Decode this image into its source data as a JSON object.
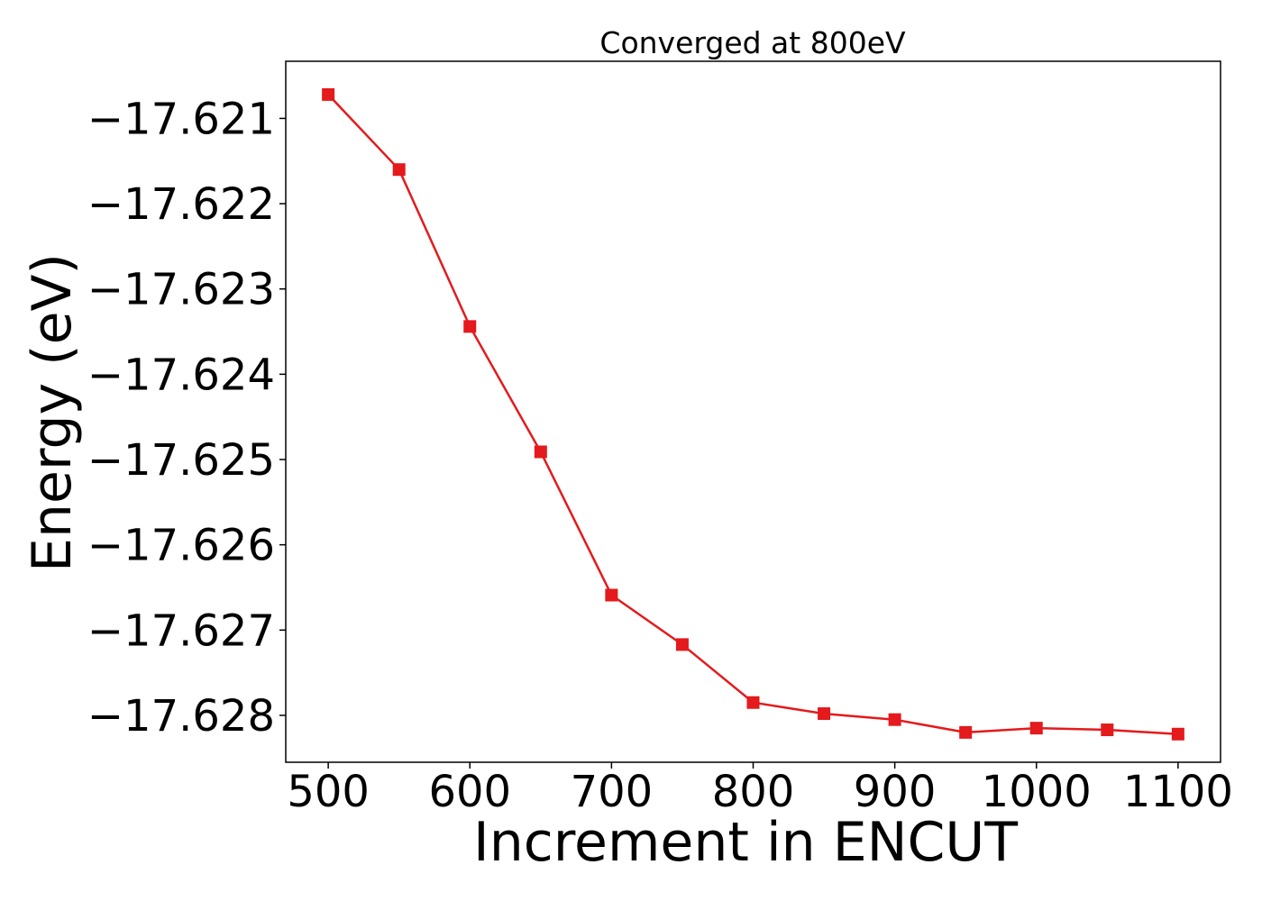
{
  "chart_data": {
    "type": "line",
    "title": "Converged at 800eV",
    "xlabel": "Increment in ENCUT",
    "ylabel": "Energy (eV)",
    "xlim": [
      470,
      1130
    ],
    "ylim": [
      -17.62855,
      -17.62033
    ],
    "xticks": [
      500,
      600,
      700,
      800,
      900,
      1000,
      1100
    ],
    "xtick_labels": [
      "500",
      "600",
      "700",
      "800",
      "900",
      "1000",
      "1100"
    ],
    "yticks": [
      -17.621,
      -17.622,
      -17.623,
      -17.624,
      -17.625,
      -17.626,
      -17.627,
      -17.628
    ],
    "ytick_labels": [
      "−17.621",
      "−17.622",
      "−17.623",
      "−17.624",
      "−17.625",
      "−17.626",
      "−17.627",
      "−17.628"
    ],
    "grid": false,
    "series": [
      {
        "marker": "square",
        "color": "#e41a1c",
        "x": [
          500,
          550,
          600,
          650,
          700,
          750,
          800,
          850,
          900,
          950,
          1000,
          1050,
          1100
        ],
        "y": [
          -17.62072,
          -17.6216,
          -17.62344,
          -17.62491,
          -17.62659,
          -17.62717,
          -17.62785,
          -17.62798,
          -17.62805,
          -17.6282,
          -17.62815,
          -17.62817,
          -17.62822
        ]
      }
    ]
  }
}
